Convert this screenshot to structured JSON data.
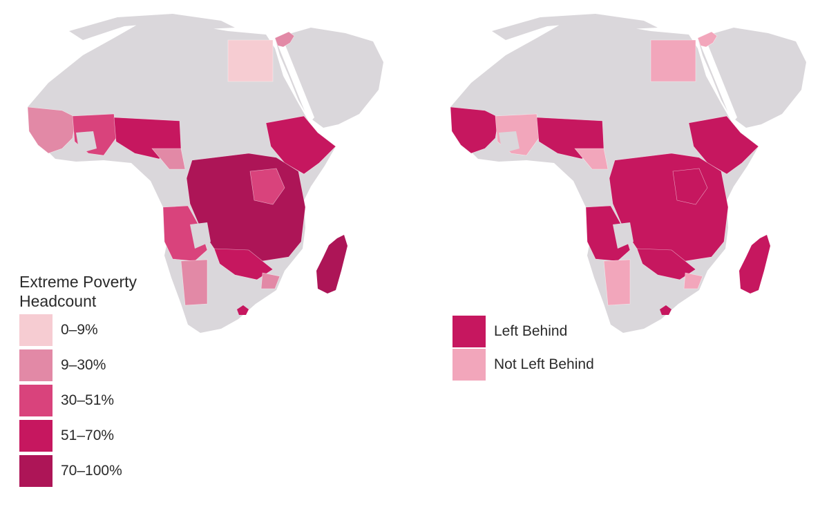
{
  "colors": {
    "land": "#dad7db",
    "ocean": "#ffffff",
    "bin_0_9": "#f6ccd2",
    "bin_9_30": "#e289a6",
    "bin_30_51": "#d9437c",
    "bin_51_70": "#c6175f",
    "bin_70_100": "#ad1557",
    "left_behind": "#c6175f",
    "not_left_behind": "#f2a6bb"
  },
  "maps": [
    {
      "id": "poverty-map",
      "legend": {
        "title_lines": [
          "Extreme Poverty",
          "Headcount"
        ],
        "items": [
          {
            "label": "0–9%",
            "color": "#f6ccd2"
          },
          {
            "label": "9–30%",
            "color": "#e289a6"
          },
          {
            "label": "30–51%",
            "color": "#d9437c"
          },
          {
            "label": "51–70%",
            "color": "#c6175f"
          },
          {
            "label": "70–100%",
            "color": "#ad1557"
          }
        ]
      }
    },
    {
      "id": "left-behind-map",
      "legend": {
        "items": [
          {
            "label": "Left Behind",
            "color": "#c6175f"
          },
          {
            "label": "Not Left Behind",
            "color": "#f2a6bb"
          }
        ]
      }
    }
  ]
}
